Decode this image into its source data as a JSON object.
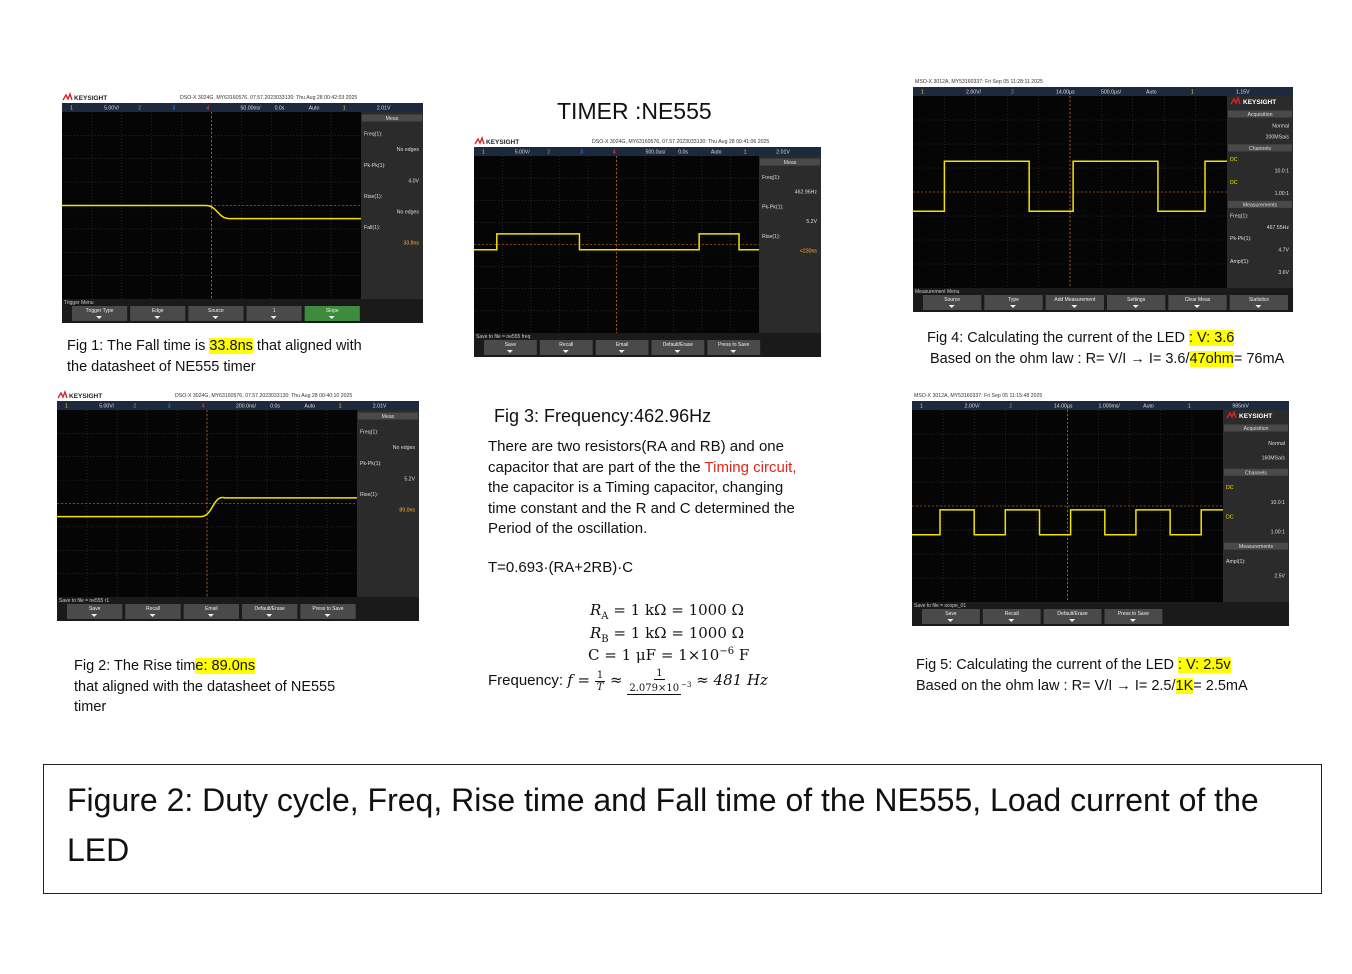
{
  "title": "TIMER :NE555",
  "scopes": {
    "fig1": {
      "brand": "KEYSIGHT",
      "header": "DSO-X 3024G, MY63160576, 07.57.2023033130: Thu Aug 28 00:42:03 2025",
      "topbar": [
        "1",
        "5.00V/",
        "2",
        "3",
        "4",
        "50.00ns/",
        "0.0s",
        "Auto",
        "1",
        "2.01V"
      ],
      "panel": [
        "Meas",
        "Freq(1):",
        "No edges",
        "Pk-Pk(1):",
        "4.0V",
        "Rise(1):",
        "No edges",
        "Fall(1):",
        "33.8ns"
      ],
      "softkeys": [
        "Trigger Menu",
        "Trigger Type",
        "Edge",
        "Source",
        "1",
        "Slope"
      ]
    },
    "fig3": {
      "brand": "KEYSIGHT",
      "header": "DSO-X 3024G, MY63160576, 07.57.2023033130: Thu Aug 28 00:41:06 2025",
      "topbar": [
        "1",
        "5.00V/",
        "2",
        "3",
        "4",
        "500.0us/",
        "0.0s",
        "Auto",
        "1",
        "2.01V"
      ],
      "panel": [
        "Meas",
        "Freq(1):",
        "462.96Hz",
        "Pk-Pk(1):",
        "5.2V",
        "Rise(1):",
        "<230ns"
      ],
      "softkeys": [
        "Save to file = ne555 freq",
        "Save",
        "Recall",
        "Email",
        "Default/Erase",
        "Press to Save"
      ]
    },
    "fig4": {
      "brand": "KEYSIGHT",
      "header": "MSO-X 3012A, MY53160337: Fri Sep 05 11:28:11 2025",
      "topbar": [
        "1",
        "2.00V/",
        "2",
        "14.00µs",
        "500.0µs/",
        "Auto",
        "1",
        "1.15V"
      ],
      "panel": [
        "Acquisition",
        "Normal",
        "200MSa/s",
        "Channels",
        "DC",
        "10.0:1",
        "DC",
        "1.00:1",
        "Measurements",
        "Freq(1):",
        "467.55Hz",
        "Pk-Pk(1):",
        "4.7V",
        "Ampl(1):",
        "3.6V"
      ],
      "softkeys": [
        "Measurement Menu",
        "Source",
        "Type",
        "Add Measurement",
        "Settings",
        "Clear Meas",
        "Statistics"
      ]
    },
    "fig2": {
      "brand": "KEYSIGHT",
      "header": "DSO-X 3024G, MY63160576, 07.57.2023033130: Thu Aug 28 00:40:10 2025",
      "topbar": [
        "1",
        "5.00V/",
        "2",
        "3",
        "4",
        "200.0ns/",
        "0.0s",
        "Auto",
        "1",
        "2.01V"
      ],
      "panel": [
        "Meas",
        "Freq(1):",
        "No edges",
        "Pk-Pk(1):",
        "5.2V",
        "Rise(1):",
        "89.0ns"
      ],
      "softkeys": [
        "Save to file = ne555 r1",
        "Save",
        "Recall",
        "Email",
        "Default/Erase",
        "Press to Save"
      ]
    },
    "fig5": {
      "brand": "KEYSIGHT",
      "header": "MSO-X 3012A, MY53160337: Fri Sep 05 11:15:48 2025",
      "topbar": [
        "1",
        "2.00V/",
        "2",
        "14.00µs",
        "1.000ms/",
        "Auto",
        "1",
        "985mV"
      ],
      "panel": [
        "Acquisition",
        "Normal",
        "160MSa/s",
        "Channels",
        "DC",
        "10.0:1",
        "DC",
        "1.00:1",
        "Measurements",
        "Ampl(1):",
        "2.5V"
      ],
      "softkeys": [
        "Save to file = scope_01",
        "Save",
        "Recall",
        "Default/Erase",
        "Press to Save"
      ]
    }
  },
  "captions": {
    "fig1": [
      [
        "Fig 1: The Fall time is ",
        "33.8ns",
        " that aligned with"
      ],
      [
        "the datasheet of NE555 timer"
      ]
    ],
    "fig2": [
      [
        "Fig 2: The Rise tim",
        "e: 89.0ns"
      ],
      [
        "that aligned with the datasheet of NE555"
      ],
      [
        "timer"
      ]
    ],
    "fig4": [
      [
        "Fig 4: Calculating the current of the LED ",
        ": V: 3.6"
      ],
      [
        "Based on the ohm law : R= V/I → I= 3.6/",
        "47ohm",
        "= 76mA"
      ]
    ],
    "fig5": [
      [
        "Fig 5: Calculating the current of the LED ",
        ": V: 2.5v"
      ],
      [
        "Based on the ohm law : R= V/I → I= 2.5/",
        "1K",
        "= 2.5mA"
      ]
    ]
  },
  "fig3_text": {
    "heading": "Fig 3: Frequency:462.96Hz",
    "paragraph": [
      "There are two resistors(RA and RB) and one",
      "capacitor that are part of the the ",
      "Timing circuit,",
      "the capacitor is a Timing capacitor, changing",
      "time constant and the R and C determined the",
      "Period of the oscillation."
    ],
    "formula": "T=0.693·(RA+2RB)·C",
    "ra": [
      "R",
      "A",
      "= 1 kΩ = 1000 Ω"
    ],
    "rb": [
      "R",
      "B",
      "= 1 kΩ = 1000 Ω"
    ],
    "c": [
      "C = 1 μF = 1×10",
      "−6",
      " F"
    ],
    "freq": [
      "Frequency: ",
      "f",
      " = ",
      "1",
      "T",
      " ≈ ",
      "1",
      "2.079×10",
      "−3",
      " ≈ 481 Hz"
    ]
  },
  "figure_caption": "Figure 2: Duty cycle, Freq, Rise time and Fall time of the NE555, Load current of the LED"
}
